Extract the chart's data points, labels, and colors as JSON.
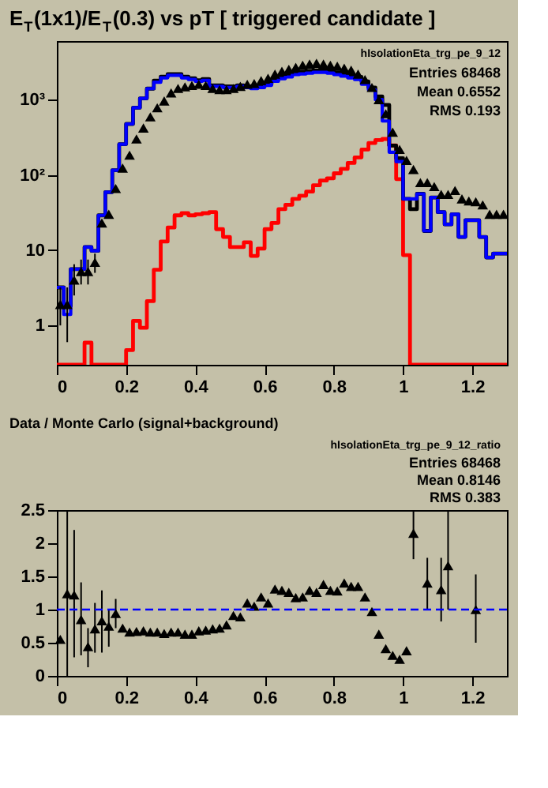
{
  "chart_data": [
    {
      "type": "histogram",
      "title": "E$_{T}$(1x1)/E$_{T}$(0.3) vs pT [ triggered candidate ]",
      "annotations": [
        "hIsolationEta_trg_pe_9_12",
        "Entries 68468",
        "Mean 0.6552",
        "RMS 0.193"
      ],
      "bins": [
        0,
        0.02,
        0.04,
        0.06,
        0.08,
        0.1,
        0.12,
        0.14,
        0.16,
        0.18,
        0.2,
        0.22,
        0.24,
        0.26,
        0.28,
        0.3,
        0.32,
        0.34,
        0.36,
        0.38,
        0.4,
        0.42,
        0.44,
        0.46,
        0.48,
        0.5,
        0.52,
        0.54,
        0.56,
        0.58,
        0.6,
        0.62,
        0.64,
        0.66,
        0.68,
        0.7,
        0.72,
        0.74,
        0.76,
        0.78,
        0.8,
        0.82,
        0.84,
        0.86,
        0.88,
        0.9,
        0.92,
        0.94,
        0.96,
        0.98,
        1,
        1.02,
        1.04,
        1.06,
        1.08,
        1.1,
        1.12,
        1.14,
        1.16,
        1.18,
        1.2,
        1.22,
        1.24,
        1.26,
        1.28,
        1.3
      ],
      "series": [
        {
          "color": "#0000ff",
          "values": [
            3.2,
            1.4,
            5.6,
            5.6,
            11,
            9.8,
            29,
            59,
            115,
            256,
            475,
            780,
            1040,
            1400,
            1700,
            1950,
            2100,
            2100,
            1950,
            1850,
            1750,
            1800,
            1500,
            1500,
            1450,
            1450,
            1500,
            1450,
            1400,
            1450,
            1550,
            1750,
            1900,
            2000,
            2150,
            2200,
            2250,
            2300,
            2300,
            2250,
            2150,
            2050,
            1950,
            1850,
            1600,
            1350,
            1000,
            520,
            200,
            150,
            48,
            48,
            56,
            18,
            50,
            32,
            22,
            30,
            15,
            25,
            25,
            15,
            8,
            9,
            9
          ]
        },
        {
          "color": "#000000",
          "values": [
            3.2,
            1.8,
            5.6,
            5.6,
            11,
            9.8,
            29,
            59,
            115,
            256,
            475,
            780,
            1040,
            1400,
            1790,
            2020,
            2180,
            2180,
            2020,
            1920,
            1810,
            1880,
            1550,
            1550,
            1500,
            1500,
            1550,
            1500,
            1460,
            1500,
            1600,
            1850,
            2000,
            2150,
            2290,
            2350,
            2400,
            2450,
            2450,
            2400,
            2300,
            2200,
            2100,
            2000,
            1740,
            1450,
            1100,
            850,
            245,
            166,
            48,
            35,
            56,
            18,
            50,
            32,
            22,
            30,
            15,
            25,
            25,
            15,
            8,
            9,
            9
          ]
        },
        {
          "color": "#ff0000",
          "values": [
            null,
            null,
            null,
            null,
            0.59,
            null,
            null,
            null,
            null,
            null,
            0.47,
            1.15,
            0.93,
            2.1,
            5.5,
            13,
            20,
            29,
            31,
            29,
            30,
            31,
            32,
            19,
            15,
            11,
            11,
            12.7,
            8.4,
            10.5,
            19,
            23,
            35,
            40,
            48,
            53,
            60,
            73,
            84,
            90,
            105,
            120,
            144,
            171,
            217,
            265,
            290,
            300,
            246,
            88,
            8.6,
            null,
            null,
            null,
            null,
            null,
            null,
            null,
            null,
            null,
            null,
            null,
            null,
            null,
            null
          ]
        },
        {
          "type": "scatter",
          "color": "#000000",
          "marker": "triangle",
          "x": [
            0.01,
            0.03,
            0.05,
            0.07,
            0.09,
            0.11,
            0.13,
            0.15,
            0.17,
            0.19,
            0.21,
            0.23,
            0.25,
            0.27,
            0.29,
            0.31,
            0.33,
            0.35,
            0.37,
            0.39,
            0.41,
            0.43,
            0.45,
            0.47,
            0.49,
            0.51,
            0.53,
            0.55,
            0.57,
            0.59,
            0.61,
            0.63,
            0.65,
            0.67,
            0.69,
            0.71,
            0.73,
            0.75,
            0.77,
            0.79,
            0.81,
            0.83,
            0.85,
            0.87,
            0.89,
            0.91,
            0.93,
            0.95,
            0.97,
            0.99,
            1.01,
            1.03,
            1.05,
            1.07,
            1.09,
            1.11,
            1.13,
            1.15,
            1.17,
            1.19,
            1.21,
            1.23,
            1.25,
            1.27,
            1.29
          ],
          "values": [
            1.9,
            1.9,
            4,
            5.2,
            5.2,
            6.9,
            23,
            30,
            66,
            123,
            183,
            300,
            420,
            590,
            780,
            960,
            1230,
            1410,
            1480,
            1540,
            1600,
            1540,
            1410,
            1360,
            1360,
            1410,
            1500,
            1600,
            1640,
            1790,
            1920,
            2180,
            2380,
            2530,
            2690,
            2860,
            2970,
            3040,
            2970,
            2860,
            2790,
            2620,
            2460,
            2180,
            1850,
            1450,
            1000,
            650,
            370,
            218,
            156,
            118,
            79,
            79,
            70,
            55,
            55,
            62,
            48,
            45,
            44,
            40,
            30,
            30,
            30
          ],
          "errors": [
            [
              1.0,
              3.2
            ],
            [
              0.6,
              3.2
            ],
            [
              2.5,
              6.5
            ],
            [
              3.5,
              7.5
            ],
            [
              3.5,
              7.5
            ],
            [
              5,
              9
            ],
            null,
            null,
            null,
            null,
            null,
            null,
            null,
            null,
            null,
            null,
            null,
            null,
            null,
            null,
            null,
            null,
            null,
            null,
            null,
            null,
            null,
            null,
            null,
            null,
            null,
            null,
            null,
            null,
            null,
            null,
            null,
            null,
            null,
            null,
            null,
            null,
            null,
            null,
            null,
            null,
            null,
            null,
            null,
            null,
            null,
            null,
            null,
            null,
            null,
            null,
            null,
            null,
            null,
            null,
            null,
            null,
            null,
            null,
            null
          ]
        }
      ],
      "log": "y",
      "xlim": [
        0,
        1.3
      ],
      "xticks": [
        0,
        0.2,
        0.4,
        0.6,
        0.8,
        1,
        1.2
      ],
      "ylim": [
        0.3,
        6000
      ],
      "yticks": [
        1,
        10,
        {
          "value": 100,
          "label": "10²"
        },
        {
          "value": 1000,
          "label": "10³"
        }
      ],
      "grid": false
    },
    {
      "type": "scatter",
      "title": "Data / Monte Carlo (signal+background)",
      "annotations": [
        "hIsolationEta_trg_pe_9_12_ratio",
        "Entries 68468",
        "Mean 0.8146",
        "RMS 0.383"
      ],
      "x": [
        0.01,
        0.03,
        0.05,
        0.07,
        0.09,
        0.11,
        0.13,
        0.15,
        0.17,
        0.19,
        0.21,
        0.23,
        0.25,
        0.27,
        0.29,
        0.31,
        0.33,
        0.35,
        0.37,
        0.39,
        0.41,
        0.43,
        0.45,
        0.47,
        0.49,
        0.51,
        0.53,
        0.55,
        0.57,
        0.59,
        0.61,
        0.63,
        0.65,
        0.67,
        0.69,
        0.71,
        0.73,
        0.75,
        0.77,
        0.79,
        0.81,
        0.83,
        0.85,
        0.87,
        0.89,
        0.91,
        0.93,
        0.95,
        0.97,
        0.99,
        1.01,
        1.03,
        1.07,
        1.11,
        1.13,
        1.21
      ],
      "series": [
        {
          "color": "#000000",
          "marker": "triangle",
          "values": [
            0.55,
            1.24,
            1.22,
            0.85,
            0.44,
            0.71,
            0.83,
            0.75,
            0.94,
            0.72,
            0.66,
            0.67,
            0.68,
            0.66,
            0.66,
            0.64,
            0.66,
            0.66,
            0.63,
            0.63,
            0.68,
            0.69,
            0.71,
            0.72,
            0.77,
            0.91,
            0.89,
            1.1,
            1.05,
            1.19,
            1.1,
            1.31,
            1.29,
            1.26,
            1.18,
            1.19,
            1.29,
            1.26,
            1.38,
            1.29,
            1.28,
            1.4,
            1.35,
            1.35,
            1.19,
            0.97,
            0.63,
            0.41,
            0.31,
            0.25,
            0.38,
            2.15,
            1.4,
            1.3,
            1.66,
            1.0
          ],
          "errors": [
            null,
            [
              0,
              2.5
            ],
            [
              0.28,
              2.2
            ],
            [
              0.31,
              1.41
            ],
            [
              0.13,
              0.72
            ],
            [
              0.35,
              1.1
            ],
            [
              0.35,
              1.29
            ],
            [
              0.44,
              1.0
            ],
            [
              0.72,
              1.16
            ],
            null,
            null,
            null,
            null,
            null,
            null,
            null,
            null,
            null,
            null,
            null,
            null,
            null,
            null,
            null,
            null,
            null,
            null,
            null,
            null,
            null,
            null,
            null,
            null,
            null,
            null,
            null,
            null,
            null,
            null,
            null,
            null,
            null,
            null,
            null,
            null,
            null,
            null,
            null,
            null,
            null,
            null,
            [
              1.76,
              2.48
            ],
            [
              1.0,
              1.78
            ],
            [
              0.82,
              1.78
            ],
            [
              1.0,
              2.48
            ],
            [
              0.5,
              1.53
            ]
          ]
        }
      ],
      "xlim": [
        0,
        1.3
      ],
      "xticks": [
        0,
        0.2,
        0.4,
        0.6,
        0.8,
        1,
        1.2
      ],
      "ylim": [
        0,
        2.5
      ],
      "yticks": [
        0,
        0.5,
        1,
        1.5,
        2,
        2.5
      ],
      "ref_lines": [
        {
          "axis": "y",
          "value": 1,
          "color": "#0000ff",
          "line_style": "dashed"
        }
      ],
      "grid": false
    }
  ]
}
